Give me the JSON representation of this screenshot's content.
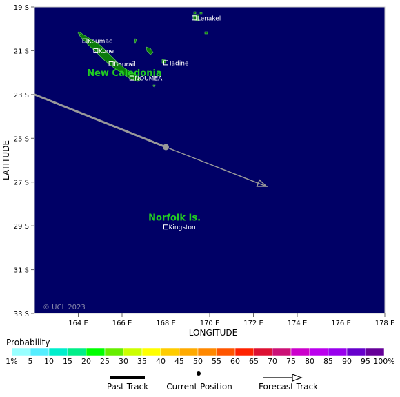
{
  "map": {
    "background_color": "#000066",
    "land_color": "#0b7a0b",
    "x_axis": {
      "label": "LONGITUDE",
      "ticks": [
        "164 E",
        "166 E",
        "168 E",
        "170 E",
        "172 E",
        "174 E",
        "176 E",
        "178 E"
      ],
      "tick_values": [
        164,
        166,
        168,
        170,
        172,
        174,
        176,
        178
      ],
      "range": [
        162,
        178
      ]
    },
    "y_axis": {
      "label": "LATITUDE",
      "ticks": [
        "19 S",
        "21 S",
        "23 S",
        "25 S",
        "27 S",
        "29 S",
        "31 S",
        "33 S"
      ],
      "tick_values": [
        19,
        21,
        23,
        25,
        27,
        29,
        31,
        33
      ],
      "range": [
        19,
        33
      ]
    },
    "regions": [
      {
        "name": "New Caledonia",
        "lon": 164.4,
        "lat": 22.0
      },
      {
        "name": "Norfolk Is.",
        "lon": 167.2,
        "lat": 28.6
      }
    ],
    "places": [
      {
        "name": "Lenakel",
        "lon": 169.3,
        "lat": 19.5
      },
      {
        "name": "Koumac",
        "lon": 164.3,
        "lat": 20.55
      },
      {
        "name": "Kone",
        "lon": 164.8,
        "lat": 21.0
      },
      {
        "name": "Tadine",
        "lon": 168.0,
        "lat": 21.55
      },
      {
        "name": "Bourail",
        "lon": 165.5,
        "lat": 21.6
      },
      {
        "name": "NOUMEA",
        "lon": 166.45,
        "lat": 22.25
      },
      {
        "name": "Kingston",
        "lon": 168.0,
        "lat": 29.05
      }
    ],
    "track": {
      "color": "#999999",
      "past": [
        [
          162.0,
          23.0
        ],
        [
          168.0,
          25.4
        ]
      ],
      "current": [
        168.0,
        25.4
      ],
      "forecast": [
        [
          168.0,
          25.4
        ],
        [
          172.6,
          27.2
        ]
      ]
    },
    "copyright": "© UCL 2023"
  },
  "legend": {
    "title": "Probability",
    "bins": [
      {
        "label": "1%",
        "color": "#99ffff"
      },
      {
        "label": "5",
        "color": "#55eeff"
      },
      {
        "label": "10",
        "color": "#00eecc"
      },
      {
        "label": "15",
        "color": "#00ee88"
      },
      {
        "label": "20",
        "color": "#00ff00"
      },
      {
        "label": "25",
        "color": "#66ee00"
      },
      {
        "label": "30",
        "color": "#ccff00"
      },
      {
        "label": "35",
        "color": "#ffff00"
      },
      {
        "label": "40",
        "color": "#ffcc00"
      },
      {
        "label": "45",
        "color": "#ffaa00"
      },
      {
        "label": "50",
        "color": "#ff8800"
      },
      {
        "label": "55",
        "color": "#ff5500"
      },
      {
        "label": "60",
        "color": "#ff2200"
      },
      {
        "label": "65",
        "color": "#dd1133"
      },
      {
        "label": "70",
        "color": "#cc1177"
      },
      {
        "label": "75",
        "color": "#cc00cc"
      },
      {
        "label": "80",
        "color": "#bb00ee"
      },
      {
        "label": "85",
        "color": "#9900ee"
      },
      {
        "label": "90",
        "color": "#6600cc"
      },
      {
        "label": "95",
        "color": "#660099"
      },
      {
        "label": "100%",
        "color": "#660066"
      }
    ],
    "keys": {
      "past": "Past Track",
      "current": "Current Position",
      "forecast": "Forecast Track"
    }
  }
}
